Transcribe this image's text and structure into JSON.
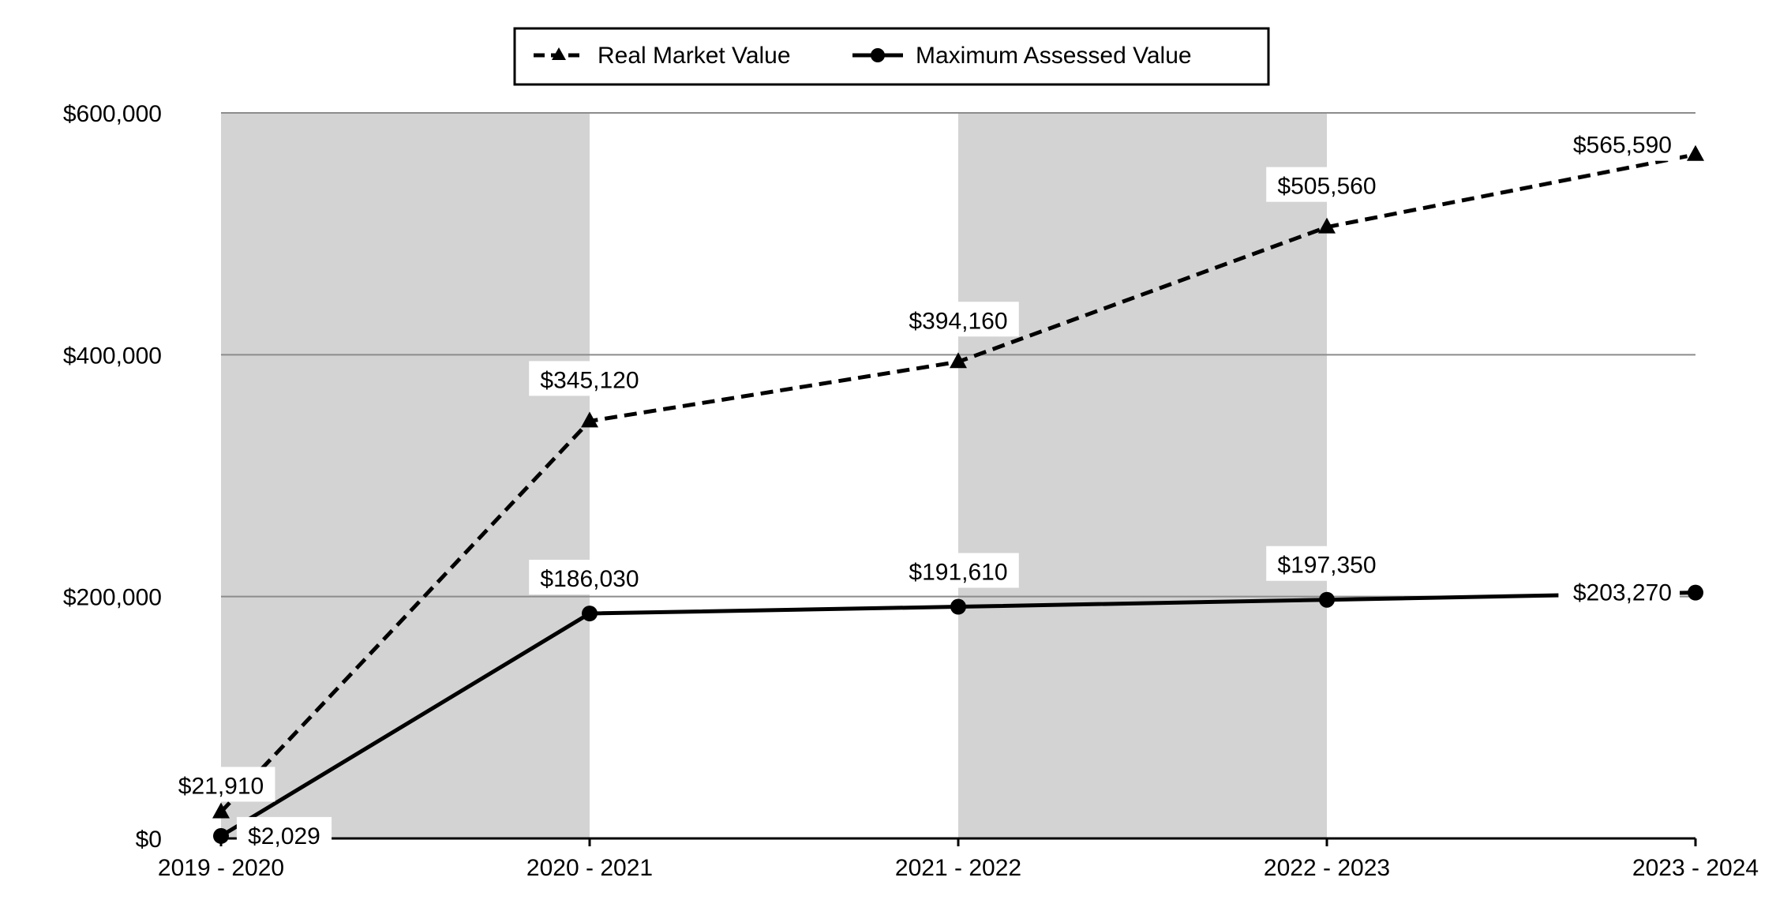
{
  "chart_data": {
    "type": "line",
    "categories": [
      "2019 - 2020",
      "2020 - 2021",
      "2021 - 2022",
      "2022 - 2023",
      "2023 - 2024"
    ],
    "ylim": [
      0,
      600000
    ],
    "yticks": [
      0,
      200000,
      400000,
      600000
    ],
    "ytick_labels": [
      "$0",
      "$200,000",
      "$400,000",
      "$600,000"
    ],
    "legend_position": "top-center",
    "grid": true,
    "shaded_bands": [
      "2019 - 2020",
      "2021 - 2022"
    ],
    "series": [
      {
        "name": "Real Market Value",
        "style": "dashed",
        "marker": "triangle",
        "values": [
          21910,
          345120,
          394160,
          505560,
          565590
        ],
        "labels": [
          "$21,910",
          "$345,120",
          "$394,160",
          "$505,560",
          "$565,590"
        ]
      },
      {
        "name": "Maximum Assessed Value",
        "style": "solid",
        "marker": "circle",
        "values": [
          2029,
          186030,
          191610,
          197350,
          203270
        ],
        "labels": [
          "$2,029",
          "$186,030",
          "$191,610",
          "$197,350",
          "$203,270"
        ]
      }
    ],
    "colors": {
      "line": "#000000",
      "band": "#d3d3d3",
      "grid": "#8c8c8c",
      "background": "#ffffff"
    }
  }
}
